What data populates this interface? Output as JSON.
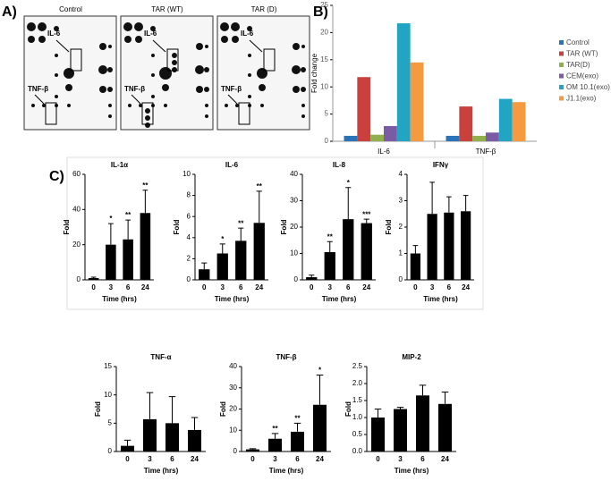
{
  "panel_labels": [
    "A)",
    "B)",
    "C)"
  ],
  "blot": {
    "titles": [
      "Control",
      "TAR (WT)",
      "TAR (D)"
    ],
    "labels": [
      "IL-6",
      "TNF-β"
    ]
  },
  "chart_data": [
    {
      "type": "grouped-bar",
      "ylabel": "Fold change",
      "categories": [
        "IL-6",
        "TNF-β"
      ],
      "series": [
        {
          "name": "Control",
          "color": "#2a73b8",
          "values": [
            1,
            1
          ]
        },
        {
          "name": "TAR (WT)",
          "color": "#c9403c",
          "values": [
            11.8,
            6.4
          ]
        },
        {
          "name": "TAR(D)",
          "color": "#8fb04c",
          "values": [
            1.2,
            1
          ]
        },
        {
          "name": "CEM(exo)",
          "color": "#7c5ba6",
          "values": [
            2.8,
            1.6
          ]
        },
        {
          "name": "OM 10.1(exo)",
          "color": "#22a5c3",
          "values": [
            21.7,
            7.8
          ]
        },
        {
          "name": "J1.1(exo)",
          "color": "#f59a3f",
          "values": [
            14.5,
            7.2
          ]
        }
      ],
      "ylim": [
        0,
        25
      ],
      "yticks": [
        0,
        5,
        10,
        15,
        20,
        25
      ]
    },
    {
      "type": "error-bar",
      "title": "IL-1α",
      "xlabel": "Time (hrs)",
      "ylabel": "Fold",
      "categories": [
        "0",
        "3",
        "6",
        "24"
      ],
      "values": [
        1,
        20,
        23,
        38
      ],
      "errors": [
        0.5,
        12,
        11,
        13
      ],
      "annotations": [
        null,
        "*",
        "**",
        "**"
      ],
      "ylim": [
        0,
        60
      ],
      "yticks": [
        0,
        20,
        40,
        60
      ],
      "color": "#000000"
    },
    {
      "type": "error-bar",
      "title": "IL-6",
      "xlabel": "Time (hrs)",
      "ylabel": "Fold",
      "categories": [
        "0",
        "3",
        "6",
        "24"
      ],
      "values": [
        1,
        2.5,
        3.7,
        5.4
      ],
      "errors": [
        0.6,
        0.9,
        1.2,
        3
      ],
      "annotations": [
        null,
        "*",
        "**",
        "**"
      ],
      "ylim": [
        0,
        10
      ],
      "yticks": [
        0,
        2,
        4,
        6,
        8,
        10
      ],
      "color": "#000000"
    },
    {
      "type": "error-bar",
      "title": "IL-8",
      "xlabel": "Time (hrs)",
      "ylabel": "Fold",
      "categories": [
        "0",
        "3",
        "6",
        "24"
      ],
      "values": [
        1,
        10.5,
        23,
        21.5
      ],
      "errors": [
        0.8,
        4,
        12,
        1.5
      ],
      "annotations": [
        null,
        "**",
        "*",
        "***"
      ],
      "ylim": [
        0,
        40
      ],
      "yticks": [
        0,
        10,
        20,
        30,
        40
      ],
      "color": "#000000"
    },
    {
      "type": "error-bar",
      "title": "IFNγ",
      "xlabel": "Time (hrs)",
      "ylabel": "Fold",
      "categories": [
        "0",
        "3",
        "6",
        "24"
      ],
      "values": [
        1,
        2.5,
        2.55,
        2.6
      ],
      "errors": [
        0.3,
        1.2,
        0.6,
        0.6
      ],
      "ylim": [
        0,
        4
      ],
      "yticks": [
        0,
        1,
        2,
        3,
        4
      ],
      "color": "#000000"
    },
    {
      "type": "error-bar",
      "title": "TNF-α",
      "xlabel": "Time (hrs)",
      "ylabel": "Fold",
      "categories": [
        "0",
        "3",
        "6",
        "24"
      ],
      "values": [
        1,
        5.7,
        5,
        3.8
      ],
      "errors": [
        1,
        4.7,
        4.7,
        2.2
      ],
      "ylim": [
        0,
        15
      ],
      "yticks": [
        0,
        5,
        10,
        15
      ],
      "color": "#000000"
    },
    {
      "type": "error-bar",
      "title": "TNF-β",
      "xlabel": "Time (hrs)",
      "ylabel": "Fold",
      "categories": [
        "0",
        "3",
        "6",
        "24"
      ],
      "values": [
        1,
        6,
        9.3,
        22
      ],
      "errors": [
        0.3,
        2.5,
        4,
        14
      ],
      "annotations": [
        null,
        "**",
        "**",
        "*"
      ],
      "ylim": [
        0,
        40
      ],
      "yticks": [
        0,
        10,
        20,
        30,
        40
      ],
      "color": "#000000"
    },
    {
      "type": "error-bar",
      "title": "MIP-2",
      "xlabel": "Time (hrs)",
      "ylabel": "Fold",
      "categories": [
        "0",
        "3",
        "6",
        "24"
      ],
      "values": [
        1,
        1.25,
        1.65,
        1.4
      ],
      "errors": [
        0.25,
        0.05,
        0.3,
        0.35
      ],
      "ylim": [
        0,
        2.5
      ],
      "yticks": [
        {
          "value": 0,
          "label": "0.0"
        },
        0.5,
        {
          "value": 1,
          "label": "1.0"
        },
        1.5,
        {
          "value": 2,
          "label": "2.0"
        },
        2.5
      ],
      "color": "#000000"
    }
  ]
}
